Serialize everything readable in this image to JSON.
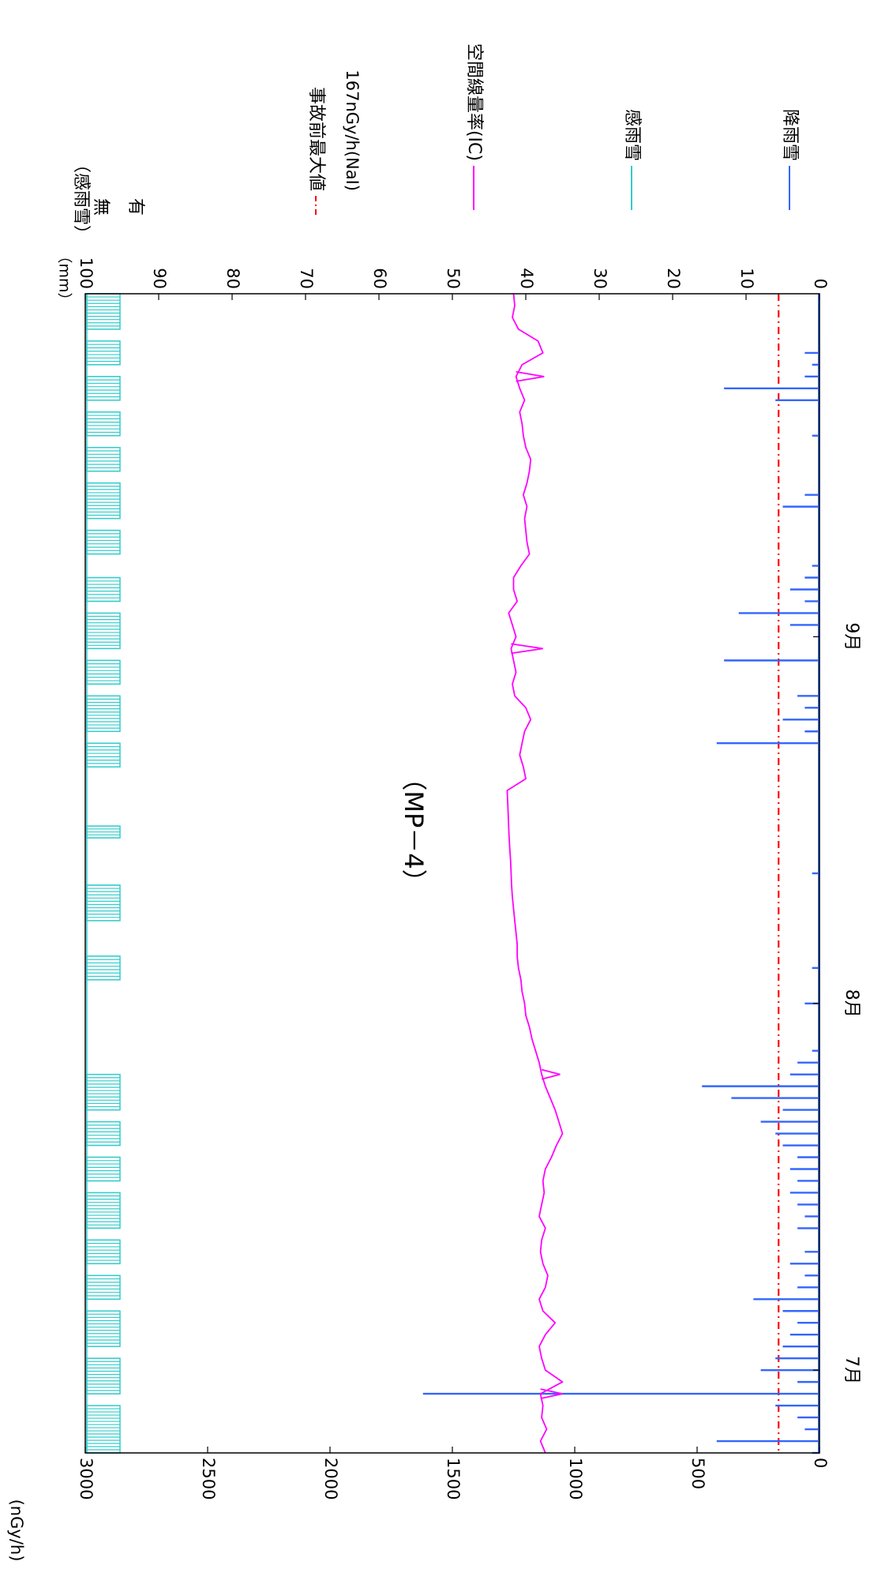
{
  "chart_data": {
    "type": "line",
    "title": "（MP－4）",
    "orientation": "rotated-90-clockwise",
    "x_axis": {
      "type": "time",
      "range": [
        "06-24",
        "09-30"
      ],
      "month_labels": [
        {
          "label": "7月",
          "date": "07-01"
        },
        {
          "label": "8月",
          "date": "08-01"
        },
        {
          "label": "9月",
          "date": "09-01"
        }
      ]
    },
    "y_left": {
      "label": "(nGy/h)",
      "ylim": [
        0,
        3000
      ],
      "ticks": [
        "0",
        "500",
        "1000",
        "1500",
        "2000",
        "2500",
        "3000"
      ]
    },
    "y_right": {
      "label": "（mm）",
      "ylim": [
        0,
        100
      ],
      "ticks": [
        "0",
        "10",
        "20",
        "30",
        "40",
        "50",
        "60",
        "70",
        "80",
        "90",
        "100"
      ]
    },
    "rain_sense_axis": {
      "label": "（感雨雪）",
      "levels": [
        "無",
        "有"
      ]
    },
    "legend": [
      {
        "name": "事故前最大値",
        "sub": "167nGy/h(NaI)",
        "color": "#ff0000",
        "style": "dash-dot"
      },
      {
        "name": "空間線量率(IC)",
        "color": "#ff00ff",
        "style": "solid"
      },
      {
        "name": "感雨雪",
        "color": "#33cccc",
        "style": "solid"
      },
      {
        "name": "降雨雪",
        "color": "#3366ff",
        "style": "solid"
      }
    ],
    "reference_line": {
      "name": "事故前最大値",
      "value": 167
    },
    "series": [
      {
        "name": "空間線量率(IC)",
        "axis": "left",
        "color": "#ff00ff",
        "x": [
          "06-24",
          "06-25",
          "06-26",
          "06-27",
          "06-28",
          "06-29",
          "06-30",
          "07-01",
          "07-02",
          "07-03",
          "07-04",
          "07-05",
          "07-06",
          "07-07",
          "07-08",
          "07-09",
          "07-10",
          "07-11",
          "07-12",
          "07-13",
          "07-14",
          "07-15",
          "07-16",
          "07-17",
          "07-18",
          "07-19",
          "07-20",
          "07-21",
          "07-22",
          "07-23",
          "07-24",
          "07-25",
          "07-26",
          "07-27",
          "07-28",
          "07-29",
          "07-30",
          "07-31",
          "08-01",
          "08-02",
          "08-03",
          "08-04",
          "08-05",
          "08-06",
          "08-07",
          "08-08",
          "08-09",
          "08-10",
          "08-11",
          "08-12",
          "08-13",
          "08-14",
          "08-15",
          "08-16",
          "08-17",
          "08-18",
          "08-19",
          "08-20",
          "08-21",
          "08-22",
          "08-23",
          "08-24",
          "08-25",
          "08-26",
          "08-27",
          "08-28",
          "08-29",
          "08-30",
          "08-31",
          "09-01",
          "09-02",
          "09-03",
          "09-04",
          "09-05",
          "09-06",
          "09-07",
          "09-08",
          "09-09",
          "09-10",
          "09-11",
          "09-12",
          "09-13",
          "09-14",
          "09-15",
          "09-16",
          "09-17",
          "09-18",
          "09-19",
          "09-20",
          "09-21",
          "09-22",
          "09-23",
          "09-24",
          "09-25",
          "09-26",
          "09-27",
          "09-28",
          "09-29",
          "09-30"
        ],
        "values": [
          1120,
          1140,
          1115,
          1135,
          1130,
          1140,
          1050,
          1120,
          1135,
          1145,
          1120,
          1080,
          1130,
          1145,
          1120,
          1110,
          1130,
          1140,
          1135,
          1120,
          1145,
          1135,
          1125,
          1130,
          1120,
          1095,
          1075,
          1050,
          1065,
          1080,
          1100,
          1120,
          1135,
          1145,
          1160,
          1175,
          1185,
          1200,
          1205,
          1215,
          1220,
          1230,
          1235,
          1235,
          1240,
          1245,
          1250,
          1255,
          1258,
          1260,
          1262,
          1265,
          1268,
          1270,
          1272,
          1274,
          1276,
          1200,
          1210,
          1225,
          1215,
          1205,
          1180,
          1200,
          1245,
          1255,
          1240,
          1250,
          1260,
          1240,
          1255,
          1270,
          1235,
          1250,
          1250,
          1220,
          1185,
          1195,
          1200,
          1205,
          1195,
          1210,
          1195,
          1185,
          1180,
          1200,
          1210,
          1215,
          1225,
          1205,
          1225,
          1240,
          1215,
          1130,
          1150,
          1230,
          1255,
          1245,
          1250
        ],
        "spikes": [
          {
            "x": "06-29",
            "value": 1050
          },
          {
            "x": "07-26",
            "value": 1060
          },
          {
            "x": "08-31",
            "value": 1130
          },
          {
            "x": "09-23",
            "value": 1125
          }
        ]
      },
      {
        "name": "降雨雪",
        "axis": "right",
        "unit": "mm",
        "color": "#3366ff",
        "points": [
          {
            "x": "06-24",
            "value": 1
          },
          {
            "x": "06-25",
            "value": 14
          },
          {
            "x": "06-26",
            "value": 2
          },
          {
            "x": "06-27",
            "value": 3
          },
          {
            "x": "06-28",
            "value": 6
          },
          {
            "x": "06-29",
            "value": 54
          },
          {
            "x": "06-30",
            "value": 3
          },
          {
            "x": "07-01",
            "value": 8
          },
          {
            "x": "07-02",
            "value": 6
          },
          {
            "x": "07-03",
            "value": 5
          },
          {
            "x": "07-04",
            "value": 4
          },
          {
            "x": "07-05",
            "value": 3
          },
          {
            "x": "07-06",
            "value": 5
          },
          {
            "x": "07-07",
            "value": 9
          },
          {
            "x": "07-08",
            "value": 3
          },
          {
            "x": "07-09",
            "value": 2
          },
          {
            "x": "07-10",
            "value": 4
          },
          {
            "x": "07-11",
            "value": 2
          },
          {
            "x": "07-13",
            "value": 3
          },
          {
            "x": "07-14",
            "value": 2
          },
          {
            "x": "07-15",
            "value": 3
          },
          {
            "x": "07-16",
            "value": 4
          },
          {
            "x": "07-17",
            "value": 3
          },
          {
            "x": "07-18",
            "value": 4
          },
          {
            "x": "07-19",
            "value": 3
          },
          {
            "x": "07-20",
            "value": 5
          },
          {
            "x": "07-21",
            "value": 6
          },
          {
            "x": "07-22",
            "value": 8
          },
          {
            "x": "07-23",
            "value": 5
          },
          {
            "x": "07-24",
            "value": 12
          },
          {
            "x": "07-25",
            "value": 16
          },
          {
            "x": "07-26",
            "value": 4
          },
          {
            "x": "07-27",
            "value": 3
          },
          {
            "x": "07-28",
            "value": 1
          },
          {
            "x": "08-01",
            "value": 2
          },
          {
            "x": "08-04",
            "value": 1
          },
          {
            "x": "08-12",
            "value": 1
          },
          {
            "x": "08-23",
            "value": 14
          },
          {
            "x": "08-24",
            "value": 2
          },
          {
            "x": "08-25",
            "value": 5
          },
          {
            "x": "08-26",
            "value": 2
          },
          {
            "x": "08-27",
            "value": 3
          },
          {
            "x": "08-30",
            "value": 13
          },
          {
            "x": "09-02",
            "value": 4
          },
          {
            "x": "09-03",
            "value": 11
          },
          {
            "x": "09-04",
            "value": 2
          },
          {
            "x": "09-05",
            "value": 4
          },
          {
            "x": "09-06",
            "value": 2
          },
          {
            "x": "09-07",
            "value": 1
          },
          {
            "x": "09-12",
            "value": 5
          },
          {
            "x": "09-13",
            "value": 2
          },
          {
            "x": "09-18",
            "value": 1
          },
          {
            "x": "09-21",
            "value": 6
          },
          {
            "x": "09-22",
            "value": 13
          },
          {
            "x": "09-23",
            "value": 2
          },
          {
            "x": "09-24",
            "value": 1
          },
          {
            "x": "09-25",
            "value": 2
          }
        ]
      },
      {
        "name": "感雨雪",
        "axis": "rain_sense",
        "color": "#33cccc",
        "periods": [
          [
            "06-24",
            "06-28"
          ],
          [
            "06-29",
            "07-02"
          ],
          [
            "07-03",
            "07-06"
          ],
          [
            "07-07",
            "07-09"
          ],
          [
            "07-10",
            "07-12"
          ],
          [
            "07-13",
            "07-16"
          ],
          [
            "07-17",
            "07-19"
          ],
          [
            "07-20",
            "07-22"
          ],
          [
            "07-23",
            "07-26"
          ],
          [
            "08-03",
            "08-05"
          ],
          [
            "08-08",
            "08-11"
          ],
          [
            "08-15",
            "08-16"
          ],
          [
            "08-21",
            "08-23"
          ],
          [
            "08-24",
            "08-27"
          ],
          [
            "08-28",
            "08-30"
          ],
          [
            "08-31",
            "09-03"
          ],
          [
            "09-04",
            "09-06"
          ],
          [
            "09-08",
            "09-10"
          ],
          [
            "09-11",
            "09-14"
          ],
          [
            "09-15",
            "09-17"
          ],
          [
            "09-18",
            "09-20"
          ],
          [
            "09-21",
            "09-23"
          ],
          [
            "09-24",
            "09-26"
          ],
          [
            "09-27",
            "09-30"
          ]
        ]
      }
    ]
  }
}
